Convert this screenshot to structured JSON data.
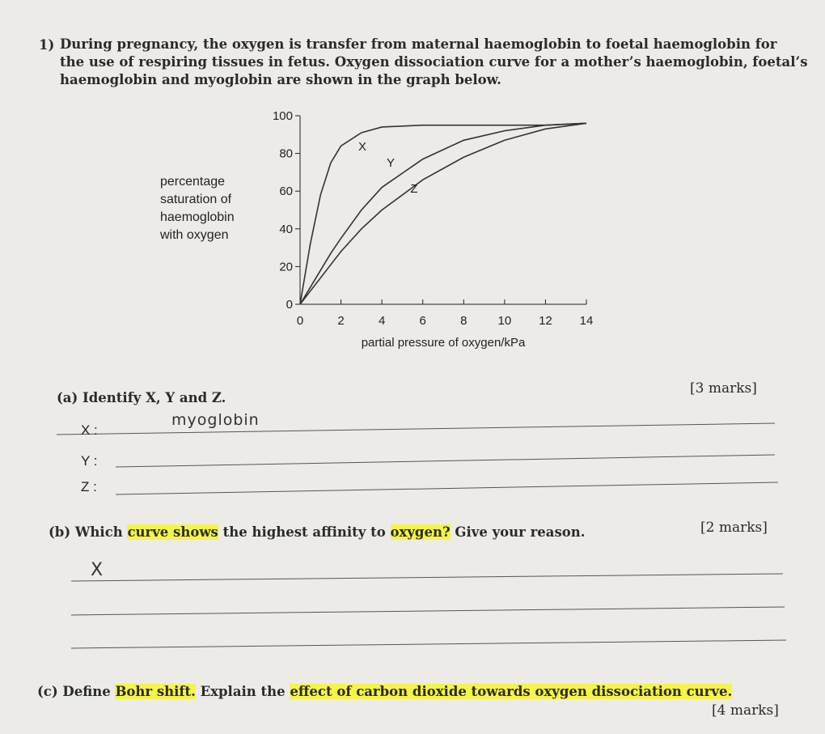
{
  "question_number": "1)",
  "intro_lines": [
    "During pregnancy, the oxygen is transfer from maternal haemoglobin to foetal haemoglobin for",
    "the use of respiring tissues in fetus. Oxygen dissociation curve for a mother’s haemoglobin, foetal’s",
    "haemoglobin and myoglobin are shown in the graph below."
  ],
  "chart_data": {
    "type": "line",
    "y_label_lines": [
      "percentage",
      "saturation of",
      "haemoglobin",
      "with oxygen"
    ],
    "x_label": "partial pressure of oxygen/kPa",
    "x": [
      0,
      0.5,
      1,
      1.5,
      2,
      3,
      4,
      6,
      8,
      10,
      12,
      14
    ],
    "series": [
      {
        "name": "X",
        "color": "#333333",
        "values": [
          0,
          32,
          58,
          75,
          84,
          91,
          94,
          95,
          95,
          95,
          95,
          96
        ]
      },
      {
        "name": "Y",
        "color": "#333333",
        "values": [
          0,
          9,
          18,
          27,
          35,
          50,
          62,
          77,
          87,
          92,
          95,
          96
        ]
      },
      {
        "name": "Z",
        "color": "#333333",
        "values": [
          0,
          7,
          14,
          21,
          28,
          40,
          50,
          66,
          78,
          87,
          93,
          96
        ]
      }
    ],
    "xlim": [
      0,
      14
    ],
    "ylim": [
      0,
      100
    ],
    "xticks": [
      0,
      2,
      4,
      6,
      8,
      10,
      12,
      14
    ],
    "yticks": [
      0,
      20,
      40,
      60,
      80,
      100
    ]
  },
  "part_a": {
    "question": "(a) Identify X, Y and Z.",
    "marks": "[3 marks]",
    "items": [
      {
        "label": "X :",
        "answer": "myoglobin"
      },
      {
        "label": "Y :"
      },
      {
        "label": "Z :"
      }
    ]
  },
  "part_b": {
    "segments": [
      {
        "text": "(b) Which ",
        "highlight": false
      },
      {
        "text": "curve shows",
        "highlight": true
      },
      {
        "text": " the highest affinity to ",
        "highlight": false
      },
      {
        "text": "oxygen?",
        "highlight": true
      },
      {
        "text": " Give your reason.",
        "highlight": false
      }
    ],
    "marks": "[2 marks]",
    "answer": "X"
  },
  "part_c": {
    "segments": [
      {
        "text": "(c) Define ",
        "highlight": false
      },
      {
        "text": "Bohr shift.",
        "highlight": true
      },
      {
        "text": " Explain the ",
        "highlight": false
      },
      {
        "text": "effect of carbon dioxide towards oxygen dissociation curve.",
        "highlight": true
      }
    ],
    "marks": "[4 marks]"
  }
}
